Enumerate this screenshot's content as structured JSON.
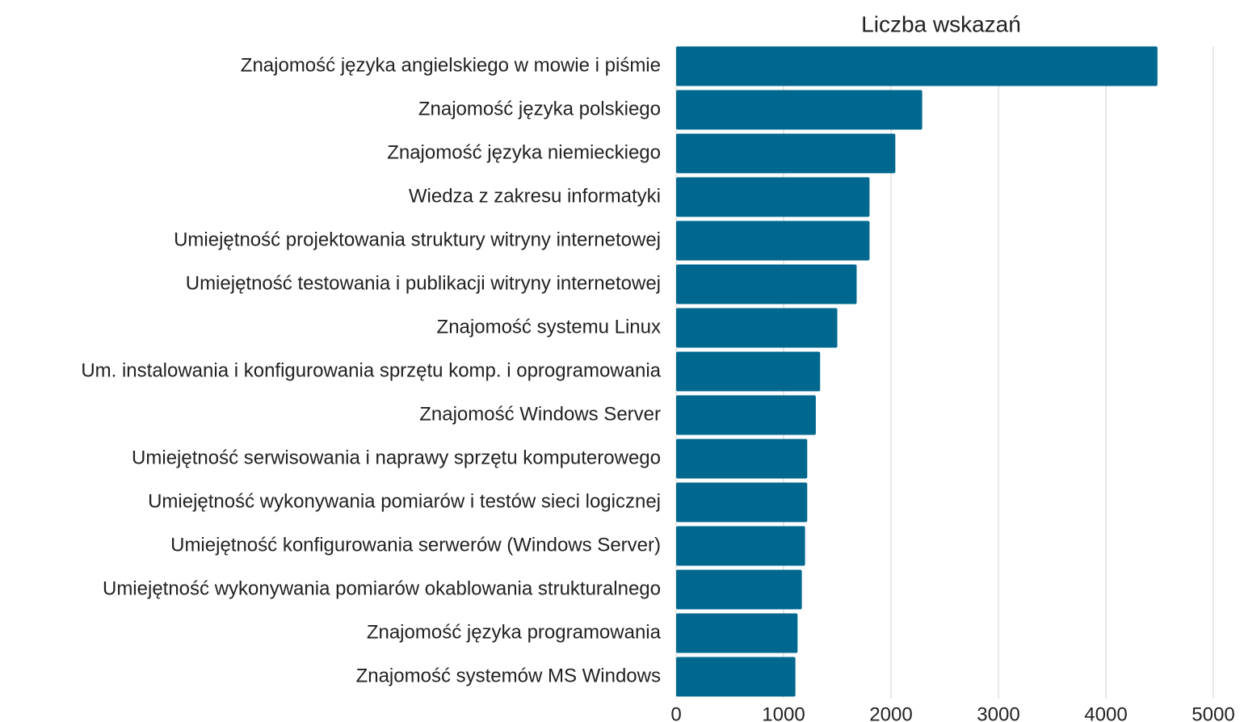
{
  "chart_data": {
    "type": "hbar",
    "title": "Liczba wskazań",
    "categories": [
      "Znajomość języka angielskiego w mowie i piśmie",
      "Znajomość języka polskiego",
      "Znajomość języka niemieckiego",
      "Wiedza z zakresu informatyki",
      "Umiejętność projektowania struktury witryny internetowej",
      "Umiejętność testowania i publikacji witryny internetowej",
      "Znajomość systemu Linux",
      "Um. instalowania i konfigurowania sprzętu komp. i oprogramowania",
      "Znajomość Windows Server",
      "Umiejętność serwisowania i naprawy sprzętu komputerowego",
      "Umiejętność wykonywania pomiarów i testów sieci logicznej",
      "Umiejętność konfigurowania serwerów (Windows Server)",
      "Umiejętność wykonywania pomiarów okablowania strukturalnego",
      "Znajomość języka programowania",
      "Znajomość systemów MS Windows"
    ],
    "values": [
      4480,
      2290,
      2040,
      1800,
      1800,
      1680,
      1500,
      1340,
      1300,
      1220,
      1220,
      1200,
      1170,
      1130,
      1110
    ],
    "color": "#00688f",
    "xlim": [
      0,
      5000
    ],
    "xticks": [
      0,
      1000,
      2000,
      3000,
      4000,
      5000
    ],
    "grid": true
  }
}
